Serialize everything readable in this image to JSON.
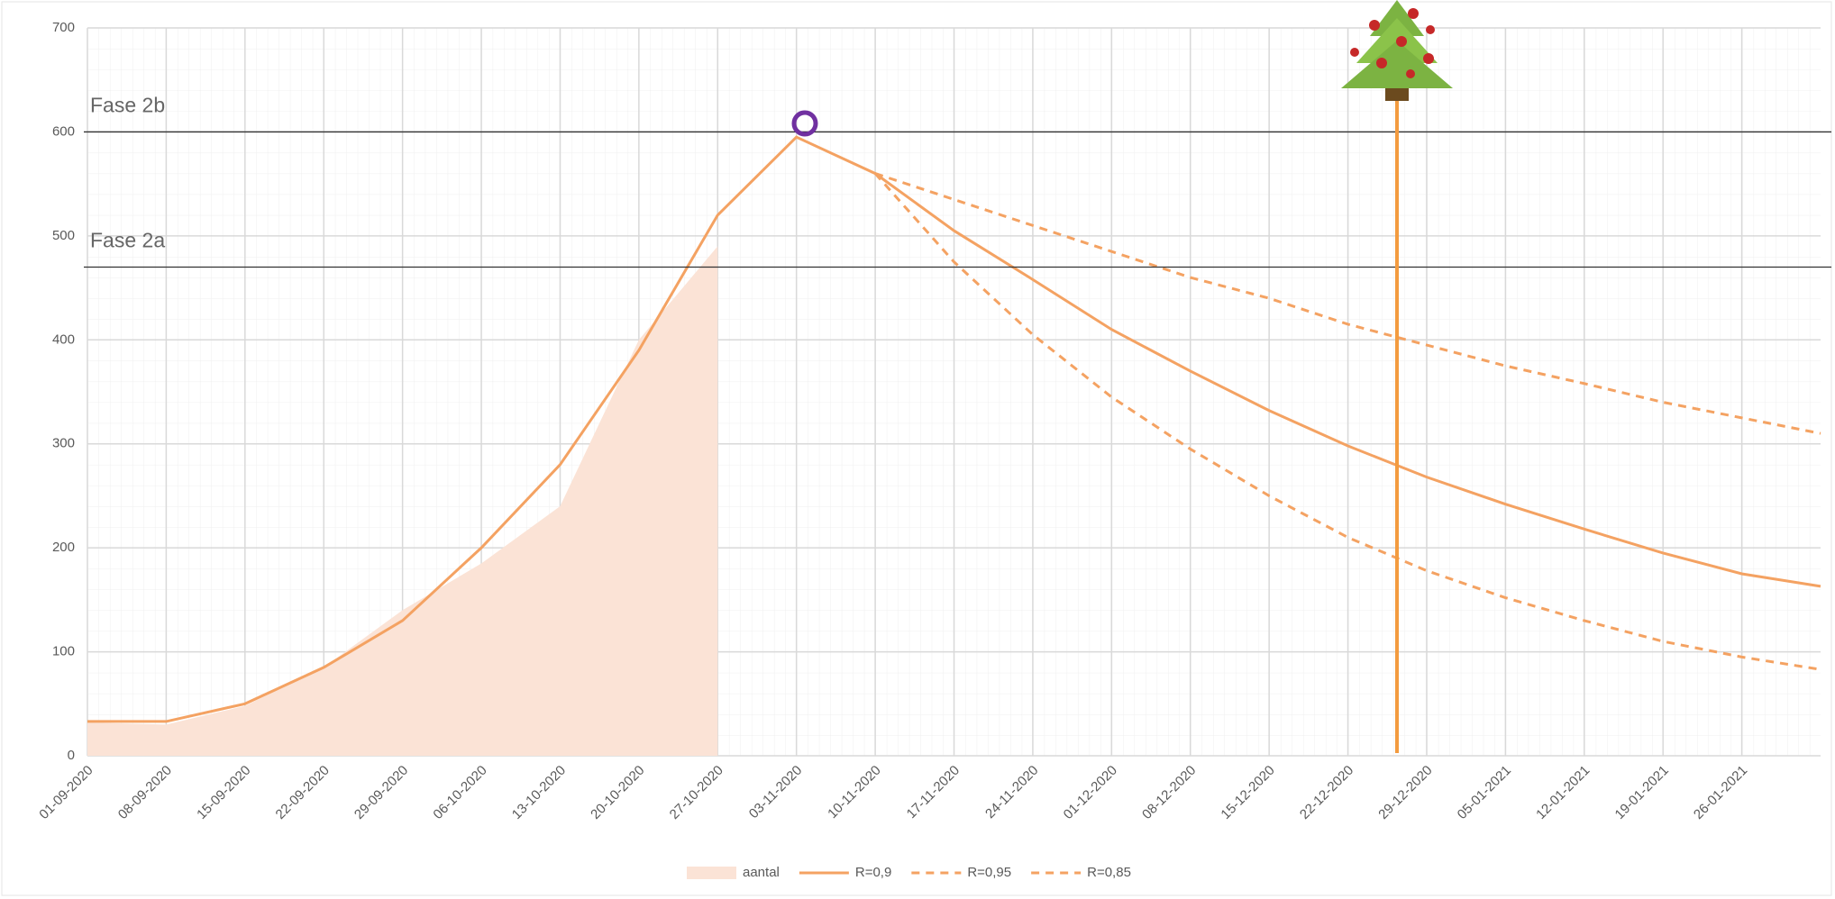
{
  "chart_data": {
    "type": "line",
    "categories": [
      "01-09-2020",
      "08-09-2020",
      "15-09-2020",
      "22-09-2020",
      "29-09-2020",
      "06-10-2020",
      "13-10-2020",
      "20-10-2020",
      "27-10-2020",
      "03-11-2020",
      "10-11-2020",
      "17-11-2020",
      "24-11-2020",
      "01-12-2020",
      "08-12-2020",
      "15-12-2020",
      "22-12-2020",
      "29-12-2020",
      "05-01-2021",
      "12-01-2021",
      "19-01-2021",
      "26-01-2021",
      null
    ],
    "series": [
      {
        "name": "aantal",
        "kind": "area",
        "color": "#fbe3d6",
        "values": [
          32,
          30,
          48,
          85,
          140,
          185,
          240,
          400,
          490,
          null,
          null,
          null,
          null,
          null,
          null,
          null,
          null,
          null,
          null,
          null,
          null,
          null,
          null
        ]
      },
      {
        "name": "R=0,9",
        "kind": "solid",
        "color": "#f4a262",
        "values": [
          33,
          33,
          50,
          85,
          130,
          200,
          280,
          390,
          520,
          595,
          560,
          505,
          458,
          410,
          370,
          332,
          298,
          268,
          242,
          218,
          195,
          175,
          163
        ]
      },
      {
        "name": "R=0,95",
        "kind": "dashed",
        "color": "#f4a262",
        "values": [
          null,
          null,
          null,
          null,
          null,
          null,
          null,
          null,
          null,
          null,
          560,
          535,
          510,
          485,
          460,
          440,
          415,
          395,
          375,
          358,
          340,
          325,
          310
        ]
      },
      {
        "name": "R=0,85",
        "kind": "dashed",
        "color": "#f4a262",
        "values": [
          null,
          null,
          null,
          null,
          null,
          null,
          null,
          null,
          null,
          null,
          560,
          475,
          405,
          345,
          295,
          250,
          210,
          178,
          152,
          130,
          110,
          95,
          83
        ]
      }
    ],
    "reference_lines": [
      {
        "label": "Fase 2b",
        "value": 600
      },
      {
        "label": "Fase 2a",
        "value": 470
      }
    ],
    "ylim": [
      0,
      700
    ],
    "yticks": [
      0,
      100,
      200,
      300,
      400,
      500,
      600,
      700
    ],
    "grid": true
  }
}
